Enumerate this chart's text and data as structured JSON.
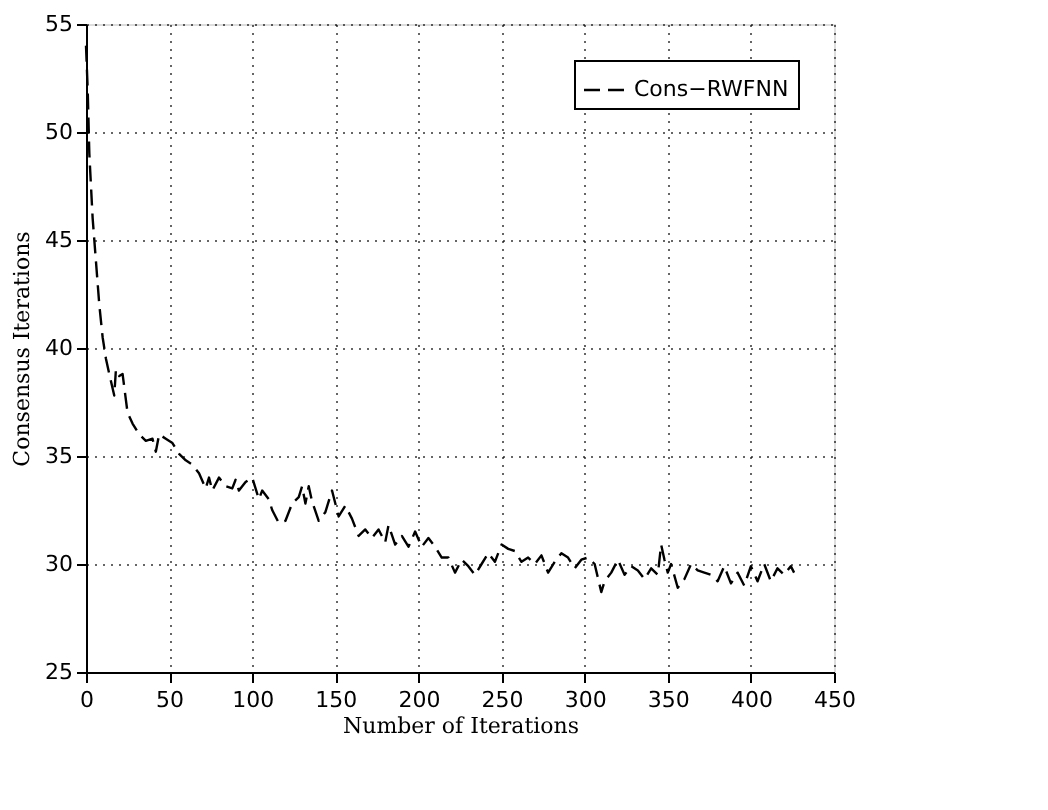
{
  "chart_data": {
    "type": "line",
    "xlabel": "Number of Iterations",
    "ylabel": "Consensus Iterations",
    "xlim": [
      0,
      450
    ],
    "ylim": [
      25,
      55
    ],
    "xticks": [
      0,
      50,
      100,
      150,
      200,
      250,
      300,
      350,
      400,
      450
    ],
    "yticks": [
      25,
      30,
      35,
      40,
      45,
      50,
      55
    ],
    "grid": true,
    "legend": "top right",
    "line_style": "dashed",
    "series": [
      {
        "name": "Cons−RWFNN",
        "color": "#000000",
        "x": [
          0,
          1,
          2,
          4,
          6,
          8,
          10,
          12,
          14,
          17,
          18,
          20,
          22,
          25,
          28,
          32,
          36,
          40,
          42,
          44,
          48,
          52,
          56,
          60,
          64,
          68,
          72,
          74,
          76,
          80,
          84,
          88,
          90,
          92,
          96,
          100,
          102,
          104,
          106,
          110,
          112,
          116,
          120,
          124,
          128,
          130,
          132,
          134,
          136,
          140,
          144,
          148,
          152,
          156,
          160,
          164,
          168,
          172,
          176,
          180,
          182,
          186,
          190,
          194,
          198,
          202,
          206,
          210,
          214,
          218,
          222,
          226,
          230,
          234,
          238,
          242,
          246,
          250,
          254,
          258,
          262,
          266,
          270,
          274,
          278,
          282,
          286,
          290,
          294,
          298,
          302,
          306,
          310,
          312,
          316,
          320,
          324,
          328,
          332,
          336,
          340,
          344,
          346,
          348,
          350,
          352,
          356,
          360,
          364,
          368,
          372,
          376,
          380,
          384,
          388,
          392,
          396,
          400,
          404,
          408,
          412,
          416,
          420,
          424,
          426
        ],
        "values": [
          54,
          52,
          49,
          46,
          44,
          42,
          40.5,
          39.5,
          38.8,
          37.8,
          39,
          38.7,
          38.8,
          37,
          36.5,
          36,
          35.7,
          35.8,
          35.2,
          36,
          35.8,
          35.6,
          35.1,
          34.8,
          34.6,
          34.2,
          33.5,
          34,
          33.4,
          34,
          33.6,
          33.5,
          33.9,
          33.4,
          33.8,
          34,
          33.5,
          33,
          33.4,
          33,
          32.5,
          31.9,
          32,
          32.8,
          33.1,
          33.6,
          32.8,
          33.6,
          32.9,
          32,
          32.4,
          33.4,
          32.2,
          32.7,
          32.1,
          31.3,
          31.6,
          31.2,
          31.6,
          31,
          31.8,
          30.9,
          31.3,
          30.8,
          31.5,
          30.8,
          31.2,
          30.8,
          30.3,
          30.3,
          29.6,
          30.2,
          29.9,
          29.5,
          30,
          30.5,
          30.1,
          30.9,
          30.7,
          30.6,
          30.1,
          30.3,
          30,
          30.4,
          29.6,
          30.1,
          30.5,
          30.3,
          29.8,
          30.2,
          30.3,
          30,
          28.7,
          29.2,
          29.6,
          30.2,
          29.5,
          29.9,
          29.7,
          29.3,
          29.8,
          29.5,
          30.9,
          30.2,
          29.6,
          30,
          28.9,
          29.3,
          30,
          29.7,
          29.6,
          29.5,
          29.2,
          29.9,
          29.1,
          29.6,
          29,
          29.9,
          29.2,
          30,
          29.2,
          29.8,
          29.5,
          29.9,
          29.6
        ]
      }
    ]
  }
}
